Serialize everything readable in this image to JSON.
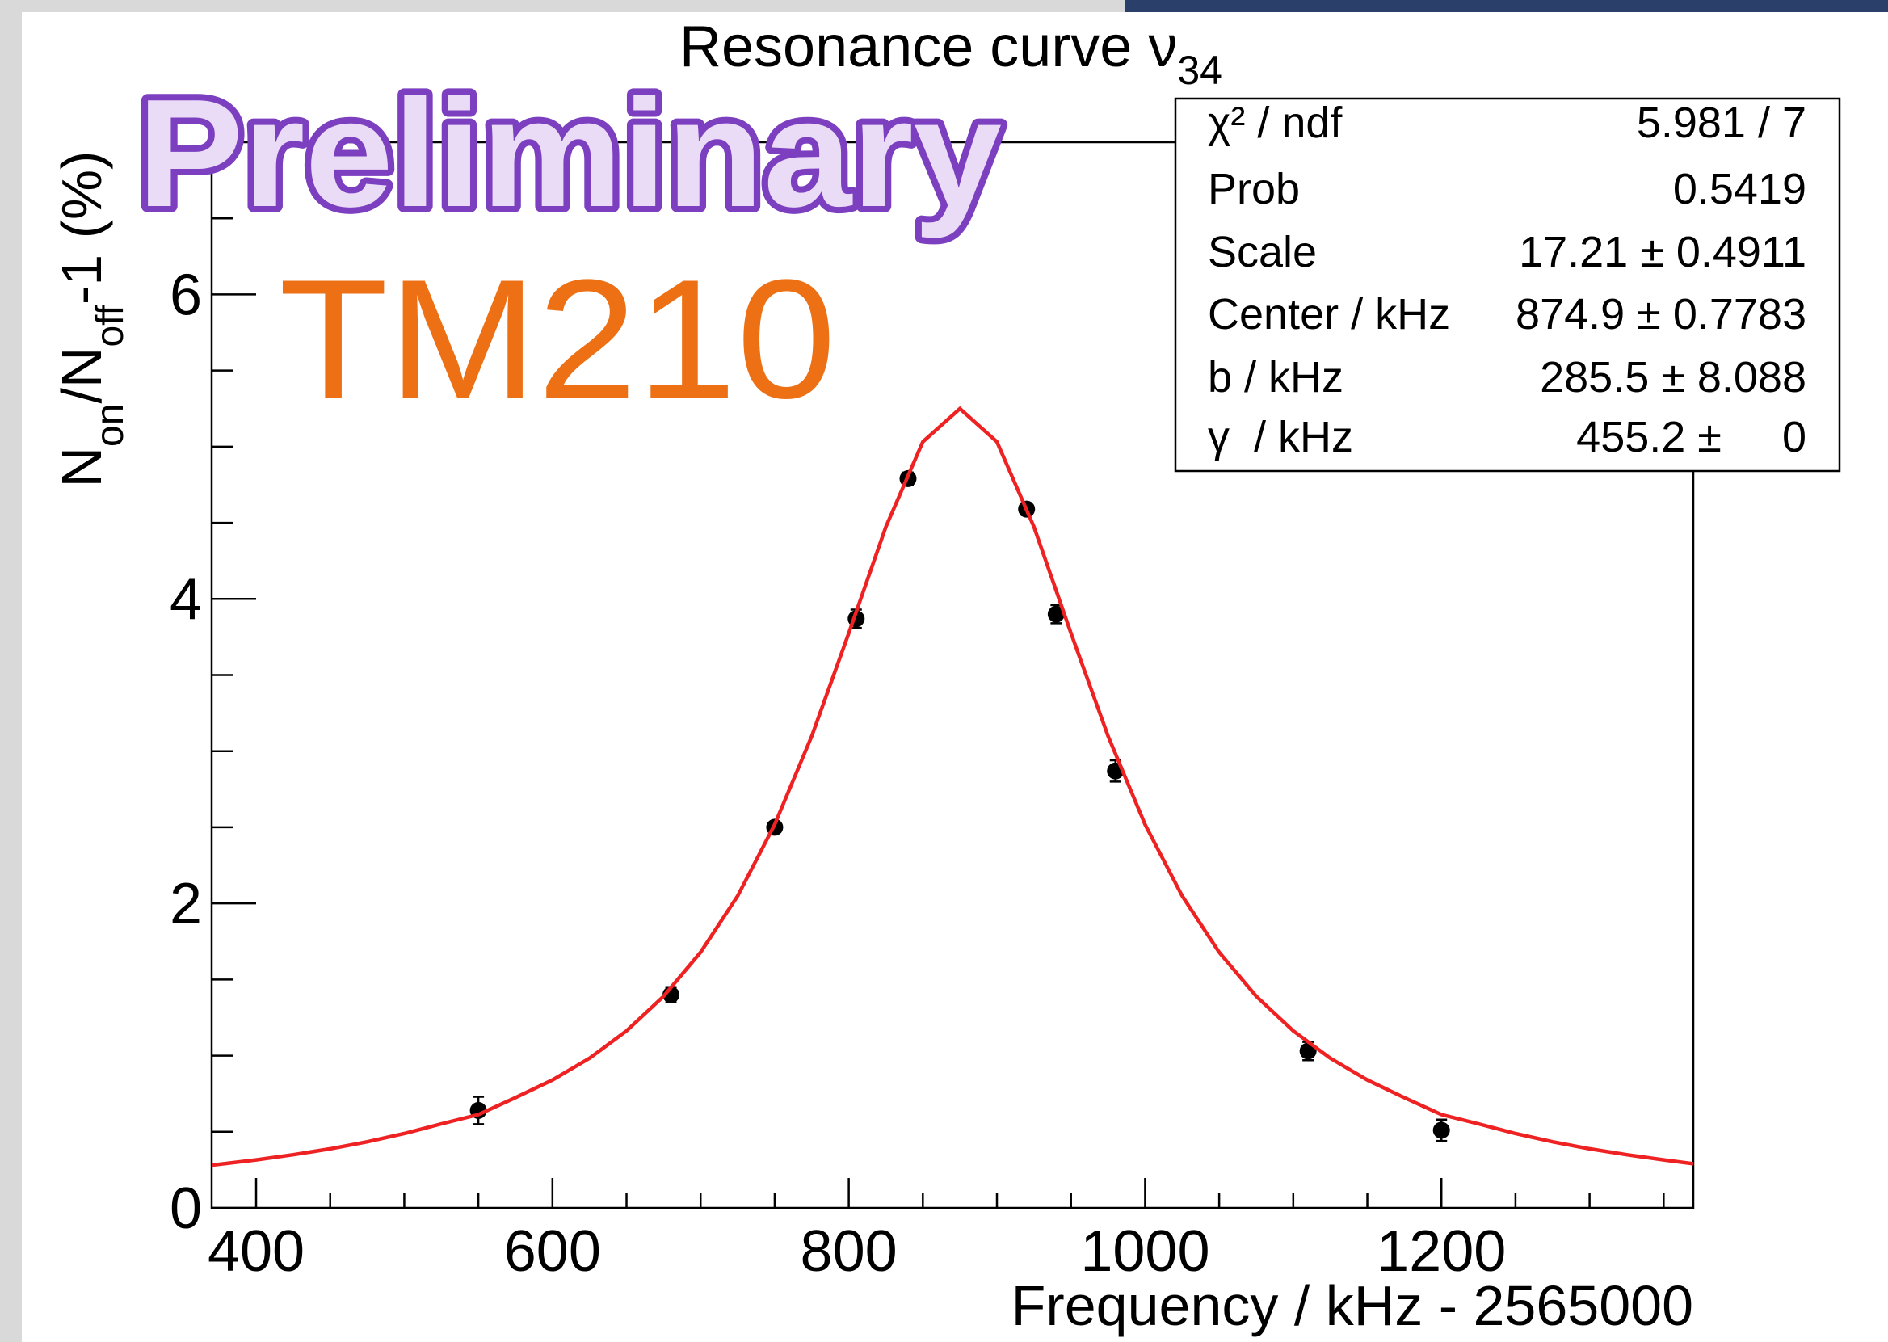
{
  "chart_data": {
    "type": "scatter",
    "title": "Resonance curve ν",
    "title_sub": "34",
    "xlabel": "Frequency / kHz - 2565000",
    "ylabel": [
      {
        "text": "N"
      },
      {
        "text": "on",
        "sub": true
      },
      {
        "text": "/N"
      },
      {
        "text": "off",
        "sub": true
      },
      {
        "text": "-1 (%)"
      }
    ],
    "xlim": [
      370,
      1370
    ],
    "ylim": [
      0,
      7
    ],
    "xticks": [
      400,
      600,
      800,
      1000,
      1200
    ],
    "yticks": [
      0,
      2,
      4,
      6
    ],
    "xticks_minor": [
      450,
      500,
      550,
      650,
      700,
      750,
      850,
      900,
      950,
      1050,
      1100,
      1150,
      1250,
      1300,
      1350
    ],
    "yticks_minor": [
      0.5,
      1,
      1.5,
      2.5,
      3,
      3.5,
      4.5,
      5,
      5.5,
      6.5
    ],
    "series": [
      {
        "type": "scatter",
        "color": "#000000",
        "x": [
          550,
          680,
          750,
          805,
          840,
          920,
          940,
          980,
          1110,
          1200
        ],
        "values": [
          0.64,
          1.4,
          2.5,
          3.87,
          4.79,
          4.59,
          3.9,
          2.87,
          1.03,
          0.51
        ],
        "errors": [
          0.09,
          0.05,
          0.03,
          0.06,
          0.04,
          0.04,
          0.06,
          0.07,
          0.06,
          0.07
        ]
      },
      {
        "type": "line",
        "color": "#ee2222",
        "x": [
          370,
          400,
          425,
          450,
          475,
          500,
          525,
          550,
          575,
          600,
          625,
          650,
          675,
          700,
          725,
          750,
          775,
          800,
          825,
          850,
          875,
          900,
          925,
          950,
          975,
          1000,
          1025,
          1050,
          1075,
          1100,
          1125,
          1150,
          1175,
          1200,
          1225,
          1250,
          1275,
          1300,
          1325,
          1350,
          1370
        ],
        "values": [
          0.28,
          0.315,
          0.349,
          0.388,
          0.434,
          0.488,
          0.552,
          0.613,
          0.724,
          0.84,
          0.983,
          1.163,
          1.39,
          1.679,
          2.049,
          2.518,
          3.099,
          3.775,
          4.473,
          5.032,
          5.25,
          5.032,
          4.473,
          3.775,
          3.099,
          2.518,
          2.049,
          1.679,
          1.39,
          1.163,
          0.983,
          0.84,
          0.724,
          0.613,
          0.552,
          0.488,
          0.434,
          0.388,
          0.349,
          0.315,
          0.29
        ]
      }
    ],
    "annotations": [
      {
        "text": "Preliminary",
        "color": "#7b3fbf",
        "fill": "#eadcf6"
      },
      {
        "text": "TM210",
        "color": "#ee7014"
      }
    ],
    "stats": [
      {
        "label": "χ² / ndf",
        "value": "5.981 / 7"
      },
      {
        "label": "Prob",
        "value": "0.5419"
      },
      {
        "label": "Scale",
        "value": "17.21 ± 0.4911"
      },
      {
        "label": "Center / kHz",
        "value": "874.9 ± 0.7783"
      },
      {
        "label": "b / kHz",
        "value": "285.5 ± 8.088"
      },
      {
        "label": "γ  / kHz",
        "value": "455.2 ±     0"
      }
    ]
  }
}
